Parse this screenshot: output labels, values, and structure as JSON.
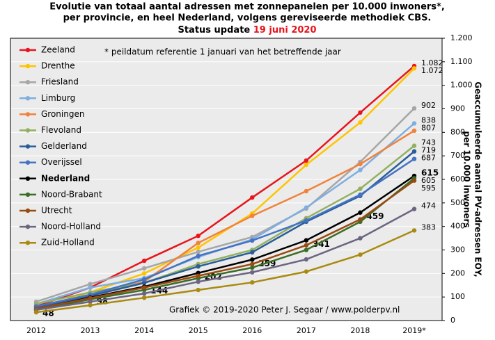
{
  "chart_data": {
    "type": "line",
    "title_lines": [
      "Evolutie van totaal aantal adressen met zonnepanelen per 10.000 inwoners*,",
      "per provincie, en heel Nederland, volgens gereviseerde methodiek CBS."
    ],
    "status": "Status update",
    "status_date": "19 juni 2020",
    "note": "* peildatum referentie 1 januari van het betreffende jaar",
    "credit": "Grafiek © 2019-2020 Peter J. Segaar / www.polderpv.nl",
    "ylabel": [
      "Geaccumuleerde aantal PV-adressen EOY,",
      "per 10.000 inwoners"
    ],
    "categories": [
      "2012",
      "2013",
      "2014",
      "2015",
      "2016",
      "2017",
      "2018",
      "2019*"
    ],
    "ylim": [
      0,
      1200
    ],
    "yticks": [
      0,
      100,
      200,
      300,
      400,
      500,
      600,
      700,
      800,
      900,
      {
        "value": 1000,
        "label": "1.000"
      },
      {
        "value": 1100,
        "label": "1.100"
      },
      {
        "value": 1200,
        "label": "1.200"
      }
    ],
    "grid": true,
    "legend": "upper left",
    "series": [
      {
        "name": "Zeeland",
        "color": "#e8141c",
        "values": [
          60,
          140,
          254,
          360,
          523,
          680,
          884,
          1082
        ],
        "value_labels": [
          null,
          null,
          null,
          null,
          null,
          null,
          null,
          "1.082"
        ]
      },
      {
        "name": "Drenthe",
        "color": "#ffc400",
        "values": [
          50,
          120,
          200,
          310,
          455,
          662,
          842,
          1072
        ],
        "value_labels": [
          null,
          null,
          null,
          null,
          null,
          null,
          null,
          "1.072"
        ]
      },
      {
        "name": "Friesland",
        "color": "#a6a6a6",
        "values": [
          80,
          155,
          222,
          292,
          355,
          476,
          674,
          902
        ],
        "value_labels": [
          null,
          null,
          null,
          null,
          null,
          null,
          null,
          "902"
        ]
      },
      {
        "name": "Limburg",
        "color": "#7eaee0",
        "values": [
          70,
          140,
          180,
          270,
          345,
          480,
          640,
          838
        ],
        "value_labels": [
          null,
          null,
          null,
          null,
          null,
          null,
          null,
          "838"
        ]
      },
      {
        "name": "Groningen",
        "color": "#f0823c",
        "values": [
          60,
          110,
          165,
          330,
          445,
          550,
          665,
          807
        ],
        "value_labels": [
          null,
          null,
          null,
          null,
          null,
          null,
          null,
          "807"
        ]
      },
      {
        "name": "Flevoland",
        "color": "#92b060",
        "values": [
          70,
          120,
          160,
          240,
          300,
          435,
          560,
          743
        ],
        "value_labels": [
          null,
          null,
          null,
          null,
          null,
          null,
          null,
          "743"
        ]
      },
      {
        "name": "Gelderland",
        "color": "#2a5d9a",
        "values": [
          55,
          105,
          160,
          230,
          290,
          420,
          530,
          719
        ],
        "value_labels": [
          null,
          null,
          null,
          null,
          null,
          null,
          null,
          "719"
        ]
      },
      {
        "name": "Overijssel",
        "color": "#4472c4",
        "values": [
          60,
          110,
          175,
          275,
          340,
          425,
          535,
          687
        ],
        "value_labels": [
          null,
          null,
          null,
          null,
          null,
          null,
          null,
          "687"
        ]
      },
      {
        "name": "Nederland",
        "color": "#000000",
        "values": [
          48,
          98,
          144,
          202,
          259,
          341,
          459,
          615
        ],
        "value_labels": [
          "48",
          "98",
          "144",
          "202",
          "259",
          "341",
          "459",
          "615"
        ]
      },
      {
        "name": "Noord-Brabant",
        "color": "#3a6e28",
        "values": [
          45,
          90,
          130,
          180,
          225,
          300,
          420,
          605
        ],
        "value_labels": [
          null,
          null,
          null,
          null,
          null,
          null,
          null,
          "605"
        ]
      },
      {
        "name": "Utrecht",
        "color": "#9a4a10",
        "values": [
          50,
          95,
          140,
          190,
          240,
          320,
          430,
          595
        ],
        "value_labels": [
          null,
          null,
          null,
          null,
          null,
          null,
          null,
          "595"
        ]
      },
      {
        "name": "Noord-Holland",
        "color": "#6c6480",
        "values": [
          45,
          80,
          115,
          165,
          205,
          260,
          350,
          474
        ],
        "value_labels": [
          null,
          null,
          null,
          null,
          null,
          null,
          null,
          "474"
        ]
      },
      {
        "name": "Zuid-Holland",
        "color": "#a88a10",
        "values": [
          35,
          65,
          97,
          130,
          162,
          208,
          280,
          383
        ],
        "value_labels": [
          null,
          null,
          null,
          null,
          null,
          null,
          null,
          "383"
        ]
      }
    ]
  }
}
